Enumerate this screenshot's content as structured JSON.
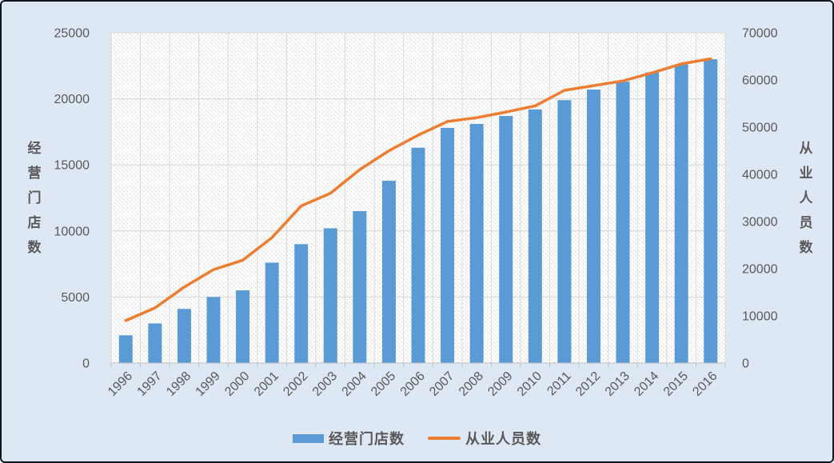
{
  "chart_data": {
    "type": "combo-bar-line",
    "title": "",
    "categories": [
      "1996",
      "1997",
      "1998",
      "1999",
      "2000",
      "2001",
      "2002",
      "2003",
      "2004",
      "2005",
      "2006",
      "2007",
      "2008",
      "2009",
      "2010",
      "2011",
      "2012",
      "2013",
      "2014",
      "2015",
      "2016"
    ],
    "series": [
      {
        "name": "经营门店数",
        "type": "bar",
        "axis": "left",
        "color": "#5b9bd5",
        "values": [
          2100,
          3000,
          4100,
          5000,
          5500,
          7600,
          9000,
          10200,
          11500,
          13800,
          16300,
          17800,
          18100,
          18700,
          19200,
          19900,
          20700,
          21300,
          22000,
          22600,
          23000
        ]
      },
      {
        "name": "从业人员数",
        "type": "line",
        "axis": "right",
        "color": "#ed7d31",
        "values": [
          9000,
          11700,
          16100,
          19800,
          21800,
          26600,
          33300,
          36000,
          41000,
          45000,
          48300,
          51200,
          52000,
          53200,
          54500,
          57800,
          58800,
          59800,
          61500,
          63400,
          64500
        ]
      }
    ],
    "left_axis": {
      "title": "经营门店数",
      "min": 0,
      "max": 25000,
      "step": 5000,
      "tick_labels": [
        "0",
        "5000",
        "10000",
        "15000",
        "20000",
        "25000"
      ]
    },
    "right_axis": {
      "title": "从业人员数",
      "min": 0,
      "max": 70000,
      "step": 10000,
      "tick_labels": [
        "0",
        "10000",
        "20000",
        "30000",
        "40000",
        "50000",
        "60000",
        "70000"
      ]
    },
    "legend": {
      "position": "bottom",
      "items": [
        "经营门店数",
        "从业人员数"
      ]
    },
    "grid": true,
    "plot_pattern": "diagonal-hatch",
    "x_label_rotation": -45
  },
  "colors": {
    "background": "#dee8f4",
    "frame_border": "#10161f",
    "bar": "#5b9bd5",
    "line": "#ed7d31",
    "grid": "#d9d9d9",
    "axis_line": "#bfbfbf",
    "text": "#595959",
    "plot_background": "#ffffff",
    "hatch": "#d8d8d8"
  }
}
